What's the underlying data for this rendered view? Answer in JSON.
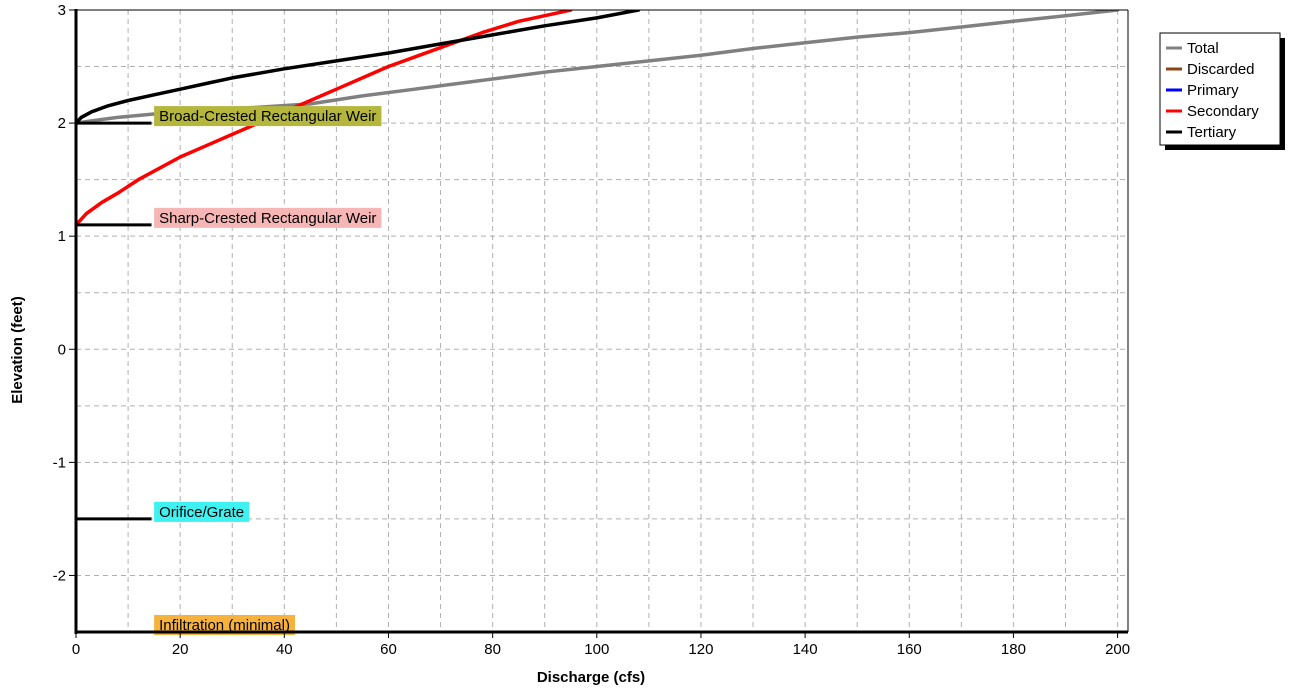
{
  "chart_data": {
    "type": "line",
    "title": "",
    "xlabel": "Discharge  (cfs)",
    "ylabel": "Elevation  (feet)",
    "xlim": [
      0,
      202
    ],
    "ylim": [
      -2.5,
      3
    ],
    "xticks": [
      0,
      20,
      40,
      60,
      80,
      100,
      120,
      140,
      160,
      180,
      200
    ],
    "yticks": [
      -2,
      -1,
      0,
      1,
      2,
      3
    ],
    "grid": true,
    "legend_position": "right, outside plot area, top",
    "series": [
      {
        "name": "Total",
        "color": "#808080",
        "points": [
          [
            0,
            2.0
          ],
          [
            3,
            2.02
          ],
          [
            8,
            2.05
          ],
          [
            15,
            2.08
          ],
          [
            25,
            2.12
          ],
          [
            35,
            2.14
          ],
          [
            45,
            2.17
          ],
          [
            55,
            2.24
          ],
          [
            65,
            2.3
          ],
          [
            75,
            2.36
          ],
          [
            90,
            2.45
          ],
          [
            100,
            2.5
          ],
          [
            110,
            2.55
          ],
          [
            120,
            2.6
          ],
          [
            130,
            2.66
          ],
          [
            140,
            2.71
          ],
          [
            150,
            2.76
          ],
          [
            160,
            2.8
          ],
          [
            170,
            2.85
          ],
          [
            180,
            2.9
          ],
          [
            190,
            2.95
          ],
          [
            200,
            3.0
          ]
        ]
      },
      {
        "name": "Discarded",
        "color": "#8B4513",
        "points": []
      },
      {
        "name": "Primary",
        "color": "#0000FF",
        "points": []
      },
      {
        "name": "Secondary",
        "color": "#FF0000",
        "points": [
          [
            0,
            1.1
          ],
          [
            2,
            1.2
          ],
          [
            5,
            1.3
          ],
          [
            8,
            1.38
          ],
          [
            12,
            1.5
          ],
          [
            16,
            1.6
          ],
          [
            20,
            1.7
          ],
          [
            25,
            1.8
          ],
          [
            30,
            1.9
          ],
          [
            35,
            2.0
          ],
          [
            40,
            2.1
          ],
          [
            45,
            2.2
          ],
          [
            50,
            2.3
          ],
          [
            55,
            2.4
          ],
          [
            60,
            2.5
          ],
          [
            66,
            2.6
          ],
          [
            72,
            2.7
          ],
          [
            78,
            2.8
          ],
          [
            85,
            2.9
          ],
          [
            90,
            2.95
          ],
          [
            95,
            3.0
          ]
        ]
      },
      {
        "name": "Tertiary",
        "color": "#000000",
        "points": [
          [
            0,
            2.0
          ],
          [
            1,
            2.05
          ],
          [
            3,
            2.1
          ],
          [
            6,
            2.15
          ],
          [
            10,
            2.2
          ],
          [
            15,
            2.25
          ],
          [
            20,
            2.3
          ],
          [
            25,
            2.35
          ],
          [
            30,
            2.4
          ],
          [
            40,
            2.48
          ],
          [
            50,
            2.55
          ],
          [
            60,
            2.62
          ],
          [
            70,
            2.7
          ],
          [
            80,
            2.78
          ],
          [
            90,
            2.86
          ],
          [
            100,
            2.93
          ],
          [
            108,
            3.0
          ]
        ]
      }
    ],
    "outlets": [
      {
        "label": "Broad-Crested Rectangular Weir",
        "elevation": 2.0,
        "color": "#B5B63C"
      },
      {
        "label": "Sharp-Crested Rectangular Weir",
        "elevation": 1.1,
        "color": "#F7B6B6"
      },
      {
        "label": "Orifice/Grate",
        "elevation": -1.5,
        "color": "#3EF2F2"
      },
      {
        "label": "Infiltration (minimal)",
        "elevation": -2.5,
        "color": "#F7B23E"
      }
    ]
  }
}
